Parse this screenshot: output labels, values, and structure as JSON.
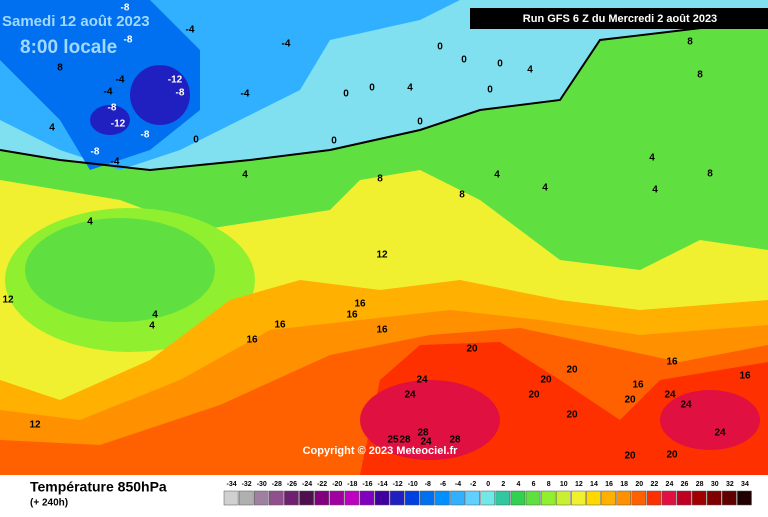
{
  "header": {
    "date": "Samedi 12 août 2023",
    "time": "8:00 locale",
    "run": "Run GFS 6 Z du Mercredi 2 août 2023"
  },
  "footer": {
    "copyright": "Copyright © 2023 Meteociel.fr"
  },
  "legend": {
    "title": "Température 850hPa",
    "subtitle": "(+ 240h)",
    "ticks": [
      -34,
      -32,
      -30,
      -28,
      -26,
      -24,
      -22,
      -20,
      -18,
      -16,
      -14,
      -12,
      -10,
      -8,
      -6,
      -4,
      -2,
      0,
      2,
      4,
      6,
      8,
      10,
      12,
      14,
      16,
      18,
      20,
      22,
      24,
      26,
      28,
      30,
      32,
      34
    ],
    "colors": [
      "#d0d0d0",
      "#b0b0b0",
      "#a080a0",
      "#905090",
      "#702070",
      "#501050",
      "#800080",
      "#a000a0",
      "#c000c0",
      "#8000c0",
      "#4000a0",
      "#2020c0",
      "#0040e0",
      "#0070f0",
      "#0090ff",
      "#30b0ff",
      "#60d0ff",
      "#70e8e8",
      "#30c8a0",
      "#30d050",
      "#60e040",
      "#90f030",
      "#c8f030",
      "#f0f030",
      "#ffd800",
      "#ffb000",
      "#ff9000",
      "#ff6000",
      "#ff3000",
      "#e01040",
      "#c00020",
      "#a00000",
      "#800000",
      "#600000",
      "#200000"
    ]
  },
  "map": {
    "contour_labels": [
      -8,
      -4,
      -8,
      -4,
      0,
      0,
      0,
      4,
      8,
      8,
      8,
      -4,
      -4,
      -12,
      -8,
      -8,
      -12,
      -8,
      -4,
      0,
      0,
      4,
      0,
      0,
      0,
      0,
      4,
      -8,
      -4,
      4,
      8,
      8,
      4,
      4,
      4,
      4,
      8,
      4,
      12,
      12,
      4,
      4,
      16,
      16,
      16,
      16,
      16,
      20,
      16,
      16,
      24,
      24,
      20,
      20,
      20,
      16,
      20,
      24,
      24,
      20,
      12,
      25,
      28,
      28,
      24,
      28,
      24,
      20,
      20
    ]
  }
}
